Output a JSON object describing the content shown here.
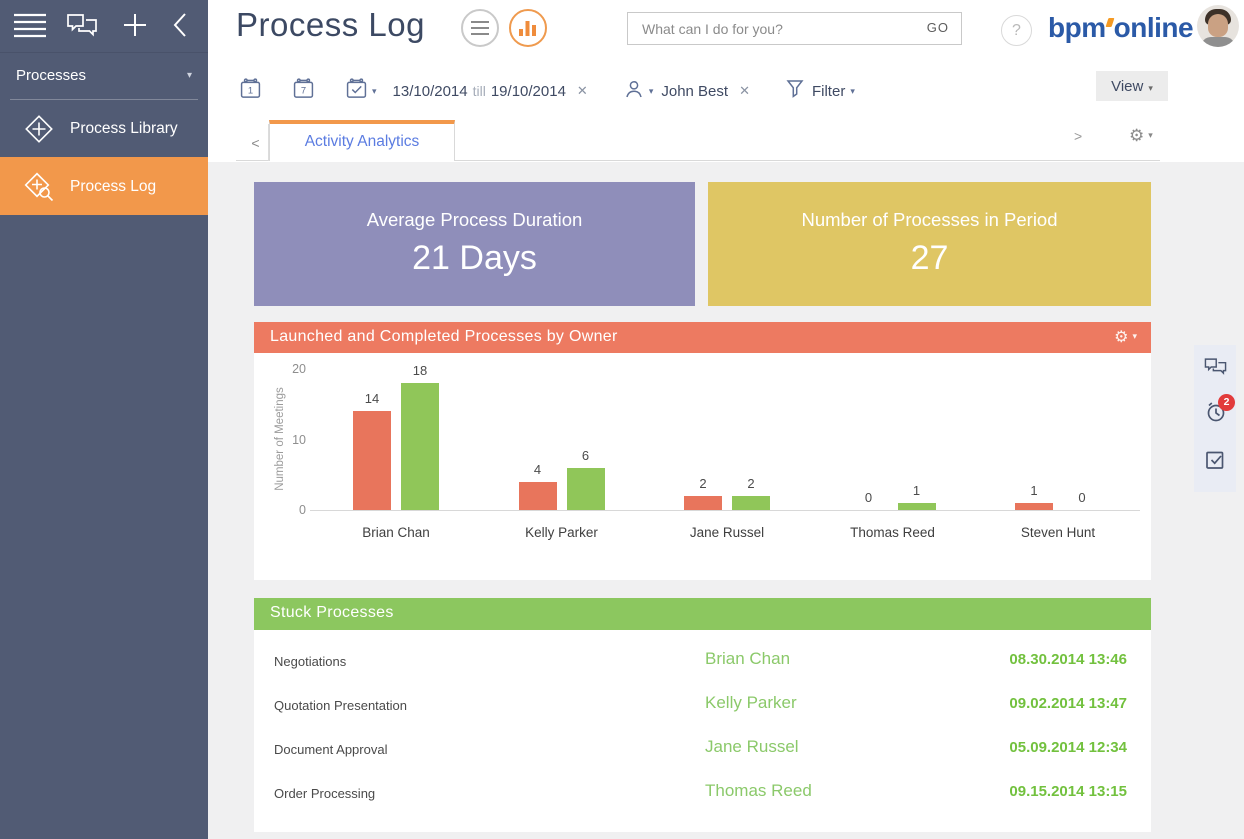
{
  "app": {
    "title": "Process Log",
    "logo_part1": "bpm",
    "logo_part2": "online"
  },
  "sidebar": {
    "section": "Processes",
    "items": [
      {
        "label": "Process Library"
      },
      {
        "label": "Process Log",
        "active": true
      }
    ]
  },
  "header": {
    "search_placeholder": "What can I do for you?",
    "go_label": "GO",
    "help_glyph": "?"
  },
  "filters": {
    "date_from": "13/10/2014",
    "till_label": "till",
    "date_to": "19/10/2014",
    "owner": "John Best",
    "filter_label": "Filter",
    "view_label": "View"
  },
  "tabs": [
    {
      "label": "Activity Analytics",
      "active": true
    }
  ],
  "tiles": [
    {
      "title": "Average Process Duration",
      "value": "21 Days",
      "color": "#8f8eba"
    },
    {
      "title": "Number of Processes in Period",
      "value": "27",
      "color": "#dfc664"
    }
  ],
  "chart_panel": {
    "title": "Launched and Completed Processes by Owner"
  },
  "chart_data": {
    "type": "bar",
    "title": "Launched and Completed Processes by Owner",
    "categories": [
      "Brian Chan",
      "Kelly Parker",
      "Jane Russel",
      "Thomas Reed",
      "Steven Hunt"
    ],
    "series": [
      {
        "name": "Launched",
        "color": "#e8755c",
        "values": [
          14,
          4,
          2,
          0,
          1
        ]
      },
      {
        "name": "Completed",
        "color": "#90c659",
        "values": [
          18,
          6,
          2,
          1,
          0
        ]
      }
    ],
    "ylabel": "Number of Meetings",
    "xlabel": "",
    "yticks": [
      0,
      10,
      20
    ],
    "ylim": [
      0,
      20
    ],
    "grid": false,
    "legend": "none",
    "data_labels": true
  },
  "stuck": {
    "title": "Stuck Processes",
    "rows": [
      {
        "process": "Negotiations",
        "owner": "Brian Chan",
        "date": "08.30.2014 13:46"
      },
      {
        "process": "Quotation Presentation",
        "owner": "Kelly Parker",
        "date": "09.02.2014 13:47"
      },
      {
        "process": "Document Approval",
        "owner": "Jane Russel",
        "date": "05.09.2014 12:34"
      },
      {
        "process": "Order Processing",
        "owner": "Thomas Reed",
        "date": "09.15.2014 13:15"
      }
    ]
  },
  "side_panel": {
    "notifications_badge": "2"
  },
  "icons": {
    "caret_down": "▾",
    "gear": "⚙",
    "chevron_left": "<",
    "chevron_right": ">",
    "close": "✕",
    "calendar_day": "1",
    "calendar_week": "7"
  },
  "colors": {
    "sidebar": "#515b74",
    "accent_orange": "#f2984b",
    "chart_header_salmon": "#ed7a61",
    "tile_purple": "#8f8eba",
    "tile_yellow": "#dfc664",
    "stuck_header_green": "#8cc75f",
    "owner_green": "#8bc96a",
    "date_green": "#72c13e",
    "tab_blue": "#5b7ce1",
    "logo_blue": "#2b5aa7",
    "badge_red": "#e23b3b",
    "bar_orange": "#e8755c",
    "bar_green": "#90c659"
  }
}
